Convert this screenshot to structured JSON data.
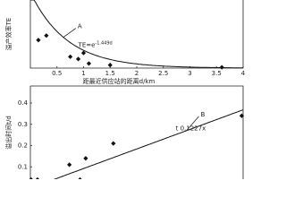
{
  "chart_data": [
    {
      "type": "scatter",
      "ylabel": "溢产效率TE",
      "xlabel": "距最近供应站的距离d/km",
      "x": [
        0.15,
        0.3,
        0.75,
        0.9,
        1.0,
        1.1,
        1.5,
        3.6
      ],
      "values": [
        0.37,
        0.43,
        0.15,
        0.12,
        0.2,
        0.06,
        0.04,
        0.01
      ],
      "xlim": [
        0,
        4
      ],
      "xticks": [
        0.5,
        1,
        1.5,
        2,
        2.5,
        3,
        3.5,
        4
      ],
      "ylim": [
        0,
        0.9
      ],
      "trend": {
        "kind": "exp",
        "equation": "TE=e",
        "exponent": "-1.449d",
        "coefficient": -1.449,
        "callout": "A"
      }
    },
    {
      "type": "scatter",
      "ylabel": "溢出时间t/d",
      "x": [
        0.01,
        0.1,
        0.55,
        0.7,
        0.78,
        1.17,
        2.98
      ],
      "values": [
        0.04,
        0.04,
        0.11,
        0.04,
        0.14,
        0.21,
        0.34
      ],
      "xlim": [
        0,
        3
      ],
      "ylim": [
        0,
        0.48
      ],
      "yticks": [
        0.1,
        0.2,
        0.3,
        0.4
      ],
      "trend": {
        "kind": "linear",
        "equation": "t   0.1227x",
        "coefficient": 0.1227,
        "callout": "B"
      }
    }
  ]
}
